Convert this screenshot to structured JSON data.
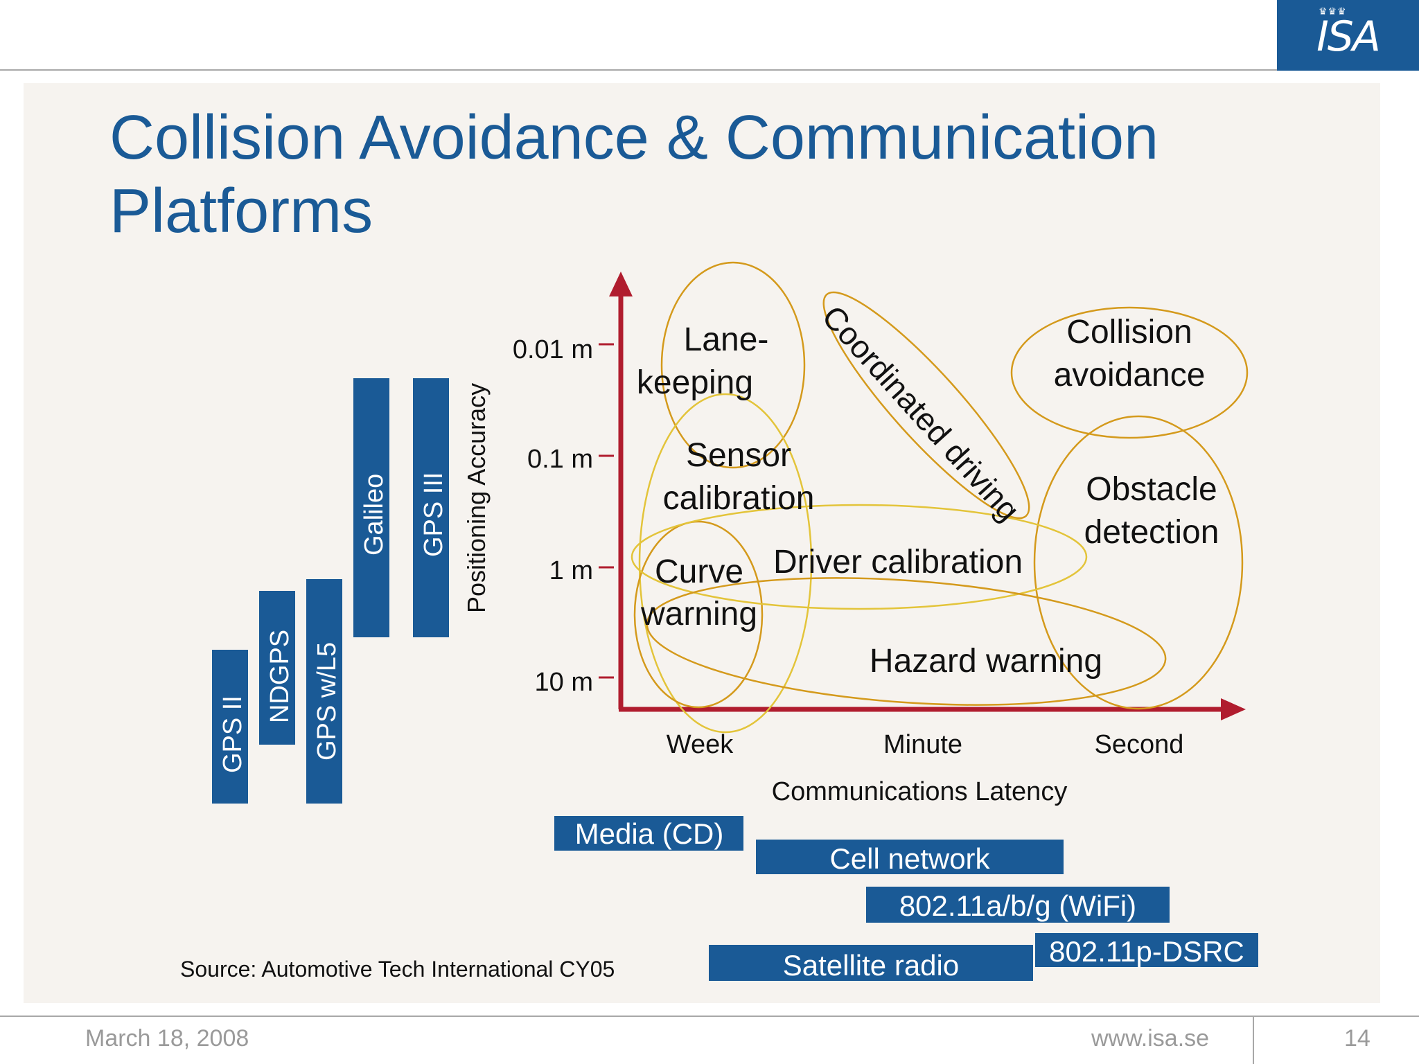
{
  "title": "Collision Avoidance & Communication Platforms",
  "logo": {
    "text": "ISA",
    "crowns": "♛♛♛"
  },
  "diagram": {
    "y_axis": {
      "label": "Positioning Accuracy",
      "ticks": [
        "0.01 m",
        "0.1 m",
        "1  m",
        "10 m"
      ]
    },
    "x_axis": {
      "label": "Communications Latency",
      "ticks": [
        "Week",
        "Minute",
        "Second"
      ]
    },
    "gps_systems": [
      "GPS II",
      "NDGPS",
      "GPS w/L5",
      "Galileo",
      "GPS III"
    ],
    "applications": {
      "lane_keeping": [
        "Lane-",
        "keeping"
      ],
      "coordinated_driving": "Coordinated driving",
      "collision_avoidance": [
        "Collision",
        "avoidance"
      ],
      "sensor_calibration": [
        "Sensor",
        "calibration"
      ],
      "obstacle_detection": [
        "Obstacle",
        "detection"
      ],
      "curve_warning": [
        "Curve",
        "warning"
      ],
      "driver_calibration": "Driver calibration",
      "hazard_warning": "Hazard warning"
    },
    "comm_platforms": [
      "Media (CD)",
      "Cell network",
      "802.11a/b/g (WiFi)",
      "802.11p-DSRC",
      "Satellite radio"
    ],
    "source": "Source: Automotive Tech International CY05",
    "colors": {
      "brand_blue": "#1a5a96",
      "axis_red": "#b01c2e",
      "ellipse_orange": "#d49a1c",
      "ellipse_yellow": "#e3c43a"
    }
  },
  "footer": {
    "date": "March 18, 2008",
    "url": "www.isa.se",
    "page": "14"
  }
}
